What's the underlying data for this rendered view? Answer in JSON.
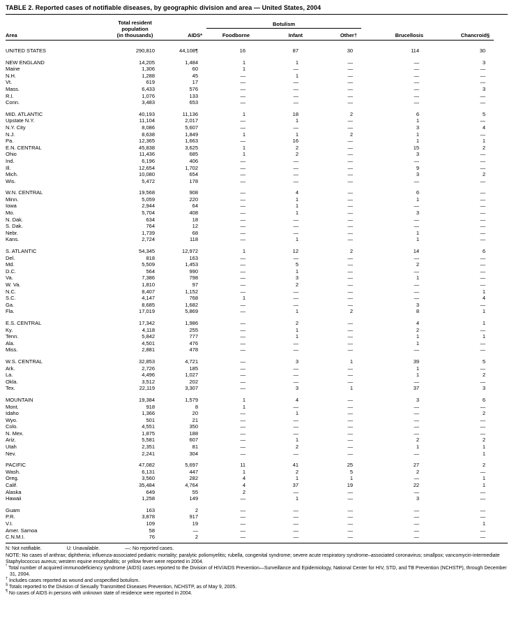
{
  "title": "TABLE 2. Reported cases of notifiable diseases, by geographic division and area — United States, 2004",
  "columns": {
    "area": "Area",
    "population_lines": [
      "Total resident",
      "population",
      "(in thousands)"
    ],
    "aids": "AIDS*",
    "botulism_group": "Botulism",
    "foodborne": "Foodborne",
    "infant": "Infant",
    "other": "Other†",
    "brucellosis": "Brucellosis",
    "chancroid": "Chancroid§"
  },
  "groups": [
    {
      "rows": [
        {
          "area": "UNITED STATES",
          "values": [
            "290,810",
            "44,108¶",
            "16",
            "87",
            "30",
            "114",
            "30"
          ]
        }
      ]
    },
    {
      "rows": [
        {
          "area": "NEW ENGLAND",
          "values": [
            "14,205",
            "1,484",
            "1",
            "1",
            "—",
            "—",
            "3"
          ]
        },
        {
          "area": "Maine",
          "values": [
            "1,306",
            "60",
            "1",
            "—",
            "—",
            "—",
            "—"
          ]
        },
        {
          "area": "N.H.",
          "values": [
            "1,288",
            "45",
            "—",
            "1",
            "—",
            "—",
            "—"
          ]
        },
        {
          "area": "Vt.",
          "values": [
            "619",
            "17",
            "—",
            "—",
            "—",
            "—",
            "—"
          ]
        },
        {
          "area": "Mass.",
          "values": [
            "6,433",
            "576",
            "—",
            "—",
            "—",
            "—",
            "3"
          ]
        },
        {
          "area": "R.I.",
          "values": [
            "1,076",
            "133",
            "—",
            "—",
            "—",
            "—",
            "—"
          ]
        },
        {
          "area": "Conn.",
          "values": [
            "3,483",
            "653",
            "—",
            "—",
            "—",
            "—",
            "—"
          ]
        }
      ]
    },
    {
      "rows": [
        {
          "area": "MID. ATLANTIC",
          "values": [
            "40,193",
            "11,136",
            "1",
            "18",
            "2",
            "6",
            "5"
          ]
        },
        {
          "area": "Upstate N.Y.",
          "values": [
            "11,104",
            "2,017",
            "—",
            "1",
            "—",
            "1",
            "—"
          ]
        },
        {
          "area": "N.Y. City",
          "values": [
            "8,086",
            "5,607",
            "—",
            "—",
            "—",
            "3",
            "4"
          ]
        },
        {
          "area": "N.J.",
          "values": [
            "8,638",
            "1,849",
            "1",
            "1",
            "2",
            "1",
            "—"
          ]
        },
        {
          "area": "Pa.",
          "values": [
            "12,365",
            "1,663",
            "—",
            "16",
            "—",
            "1",
            "1"
          ]
        },
        {
          "area": "E.N. CENTRAL",
          "values": [
            "45,838",
            "3,625",
            "1",
            "2",
            "—",
            "15",
            "2"
          ]
        },
        {
          "area": "Ohio",
          "values": [
            "11,436",
            "685",
            "1",
            "2",
            "—",
            "3",
            "—"
          ]
        },
        {
          "area": "Ind.",
          "values": [
            "6,196",
            "406",
            "—",
            "—",
            "—",
            "—",
            "—"
          ]
        },
        {
          "area": "Ill.",
          "values": [
            "12,654",
            "1,702",
            "—",
            "—",
            "—",
            "9",
            "—"
          ]
        },
        {
          "area": "Mich.",
          "values": [
            "10,080",
            "654",
            "—",
            "—",
            "—",
            "3",
            "2"
          ]
        },
        {
          "area": "Wis.",
          "values": [
            "5,472",
            "178",
            "—",
            "—",
            "—",
            "—",
            "—"
          ]
        }
      ]
    },
    {
      "rows": [
        {
          "area": "W.N. CENTRAL",
          "values": [
            "19,568",
            "908",
            "—",
            "4",
            "—",
            "6",
            "—"
          ]
        },
        {
          "area": "Minn.",
          "values": [
            "5,059",
            "220",
            "—",
            "1",
            "—",
            "1",
            "—"
          ]
        },
        {
          "area": "Iowa",
          "values": [
            "2,944",
            "64",
            "—",
            "1",
            "—",
            "—",
            "—"
          ]
        },
        {
          "area": "Mo.",
          "values": [
            "5,704",
            "408",
            "—",
            "1",
            "—",
            "3",
            "—"
          ]
        },
        {
          "area": "N. Dak.",
          "values": [
            "634",
            "18",
            "—",
            "—",
            "—",
            "—",
            "—"
          ]
        },
        {
          "area": "S. Dak.",
          "values": [
            "764",
            "12",
            "—",
            "—",
            "—",
            "—",
            "—"
          ]
        },
        {
          "area": "Nebr.",
          "values": [
            "1,739",
            "68",
            "—",
            "—",
            "—",
            "1",
            "—"
          ]
        },
        {
          "area": "Kans.",
          "values": [
            "2,724",
            "118",
            "—",
            "1",
            "—",
            "1",
            "—"
          ]
        }
      ]
    },
    {
      "rows": [
        {
          "area": "S. ATLANTIC",
          "values": [
            "54,345",
            "12,972",
            "1",
            "12",
            "2",
            "14",
            "6"
          ]
        },
        {
          "area": "Del.",
          "values": [
            "818",
            "163",
            "—",
            "—",
            "—",
            "—",
            "—"
          ]
        },
        {
          "area": "Md.",
          "values": [
            "5,509",
            "1,453",
            "—",
            "5",
            "—",
            "2",
            "—"
          ]
        },
        {
          "area": "D.C.",
          "values": [
            "564",
            "990",
            "—",
            "1",
            "—",
            "—",
            "—"
          ]
        },
        {
          "area": "Va.",
          "values": [
            "7,386",
            "798",
            "—",
            "3",
            "—",
            "1",
            "—"
          ]
        },
        {
          "area": "W. Va.",
          "values": [
            "1,810",
            "97",
            "—",
            "2",
            "—",
            "—",
            "—"
          ]
        },
        {
          "area": "N.C.",
          "values": [
            "8,407",
            "1,152",
            "—",
            "—",
            "—",
            "—",
            "1"
          ]
        },
        {
          "area": "S.C.",
          "values": [
            "4,147",
            "768",
            "1",
            "—",
            "—",
            "—",
            "4"
          ]
        },
        {
          "area": "Ga.",
          "values": [
            "8,685",
            "1,682",
            "—",
            "—",
            "—",
            "3",
            "—"
          ]
        },
        {
          "area": "Fla.",
          "values": [
            "17,019",
            "5,869",
            "—",
            "1",
            "2",
            "8",
            "1"
          ]
        }
      ]
    },
    {
      "rows": [
        {
          "area": "E.S. CENTRAL",
          "values": [
            "17,342",
            "1,986",
            "—",
            "2",
            "—",
            "4",
            "1"
          ]
        },
        {
          "area": "Ky.",
          "values": [
            "4,118",
            "255",
            "—",
            "1",
            "—",
            "2",
            "—"
          ]
        },
        {
          "area": "Tenn.",
          "values": [
            "5,842",
            "777",
            "—",
            "1",
            "—",
            "1",
            "1"
          ]
        },
        {
          "area": "Ala.",
          "values": [
            "4,501",
            "476",
            "—",
            "—",
            "—",
            "1",
            "—"
          ]
        },
        {
          "area": "Miss.",
          "values": [
            "2,881",
            "478",
            "—",
            "—",
            "—",
            "—",
            "—"
          ]
        }
      ]
    },
    {
      "rows": [
        {
          "area": "W.S. CENTRAL",
          "values": [
            "32,853",
            "4,721",
            "—",
            "3",
            "1",
            "39",
            "5"
          ]
        },
        {
          "area": "Ark.",
          "values": [
            "2,726",
            "185",
            "—",
            "—",
            "—",
            "1",
            "—"
          ]
        },
        {
          "area": "La.",
          "values": [
            "4,496",
            "1,027",
            "—",
            "—",
            "—",
            "1",
            "2"
          ]
        },
        {
          "area": "Okla.",
          "values": [
            "3,512",
            "202",
            "—",
            "—",
            "—",
            "—",
            "—"
          ]
        },
        {
          "area": "Tex.",
          "values": [
            "22,119",
            "3,307",
            "—",
            "3",
            "1",
            "37",
            "3"
          ]
        }
      ]
    },
    {
      "rows": [
        {
          "area": "MOUNTAIN",
          "values": [
            "19,384",
            "1,579",
            "1",
            "4",
            "—",
            "3",
            "6"
          ]
        },
        {
          "area": "Mont.",
          "values": [
            "918",
            "8",
            "1",
            "—",
            "—",
            "—",
            "—"
          ]
        },
        {
          "area": "Idaho",
          "values": [
            "1,366",
            "20",
            "—",
            "1",
            "—",
            "—",
            "2"
          ]
        },
        {
          "area": "Wyo.",
          "values": [
            "501",
            "21",
            "—",
            "—",
            "—",
            "—",
            "—"
          ]
        },
        {
          "area": "Colo.",
          "values": [
            "4,551",
            "350",
            "—",
            "—",
            "—",
            "—",
            "—"
          ]
        },
        {
          "area": "N. Mex.",
          "values": [
            "1,875",
            "188",
            "—",
            "—",
            "—",
            "—",
            "—"
          ]
        },
        {
          "area": "Ariz.",
          "values": [
            "5,581",
            "607",
            "—",
            "1",
            "—",
            "2",
            "2"
          ]
        },
        {
          "area": "Utah",
          "values": [
            "2,351",
            "81",
            "—",
            "2",
            "—",
            "1",
            "1"
          ]
        },
        {
          "area": "Nev.",
          "values": [
            "2,241",
            "304",
            "—",
            "—",
            "—",
            "—",
            "1"
          ]
        }
      ]
    },
    {
      "rows": [
        {
          "area": "PACIFIC",
          "values": [
            "47,082",
            "5,697",
            "11",
            "41",
            "25",
            "27",
            "2"
          ]
        },
        {
          "area": "Wash.",
          "values": [
            "6,131",
            "447",
            "1",
            "2",
            "5",
            "2",
            "—"
          ]
        },
        {
          "area": "Oreg.",
          "values": [
            "3,560",
            "282",
            "4",
            "1",
            "1",
            "—",
            "1"
          ]
        },
        {
          "area": "Calif.",
          "values": [
            "35,484",
            "4,764",
            "4",
            "37",
            "19",
            "22",
            "1"
          ]
        },
        {
          "area": "Alaska",
          "values": [
            "649",
            "55",
            "2",
            "—",
            "—",
            "—",
            "—"
          ]
        },
        {
          "area": "Hawaii",
          "values": [
            "1,258",
            "149",
            "—",
            "1",
            "—",
            "3",
            "—"
          ]
        }
      ]
    },
    {
      "rows": [
        {
          "area": "Guam",
          "values": [
            "163",
            "2",
            "—",
            "—",
            "—",
            "—",
            "—"
          ]
        },
        {
          "area": "P.R.",
          "values": [
            "3,878",
            "917",
            "—",
            "—",
            "—",
            "—",
            "—"
          ]
        },
        {
          "area": "V.I.",
          "values": [
            "109",
            "19",
            "—",
            "—",
            "—",
            "—",
            "1"
          ]
        },
        {
          "area": "Amer. Samoa",
          "values": [
            "58",
            "—",
            "—",
            "—",
            "—",
            "—",
            "—"
          ]
        },
        {
          "area": "C.N.M.I.",
          "values": [
            "76",
            "2",
            "—",
            "—",
            "—",
            "—",
            "—"
          ]
        }
      ]
    }
  ],
  "legend": {
    "n": "N: Not notifiable.",
    "u": "U: Unavailable.",
    "dash": "—: No reported cases."
  },
  "footnotes": [
    {
      "marker": "",
      "text": "NOTE: No cases of anthrax; diphtheria; influenza-associated pediatric mortality; paralytic poliomyelitis; rubella, congenital syndrome; severe acute respiratory syndrome–associated coronavirus; smallpox; vancomycin-intermediate Staphylococcus aureus; western equine encephalitis; or yellow fever were reported in 2004."
    },
    {
      "marker": "*",
      "text": "Total number of acquired immunodeficiency syndrome (AIDS) cases reported to the Division of HIV/AIDS Prevention—Surveillance and Epidemiology, National Center for HIV, STD, and TB Prevention (NCHSTP), through December 31, 2004."
    },
    {
      "marker": "†",
      "text": "Includes cases reported as wound and unspecified botulism."
    },
    {
      "marker": "§",
      "text": "Totals reported to the Division of Sexually Transmitted Diseases Prevention, NCHSTP, as of May 9, 2005."
    },
    {
      "marker": "¶",
      "text": "No cases of AIDS in persons with unknown state of residence were reported in 2004."
    }
  ]
}
